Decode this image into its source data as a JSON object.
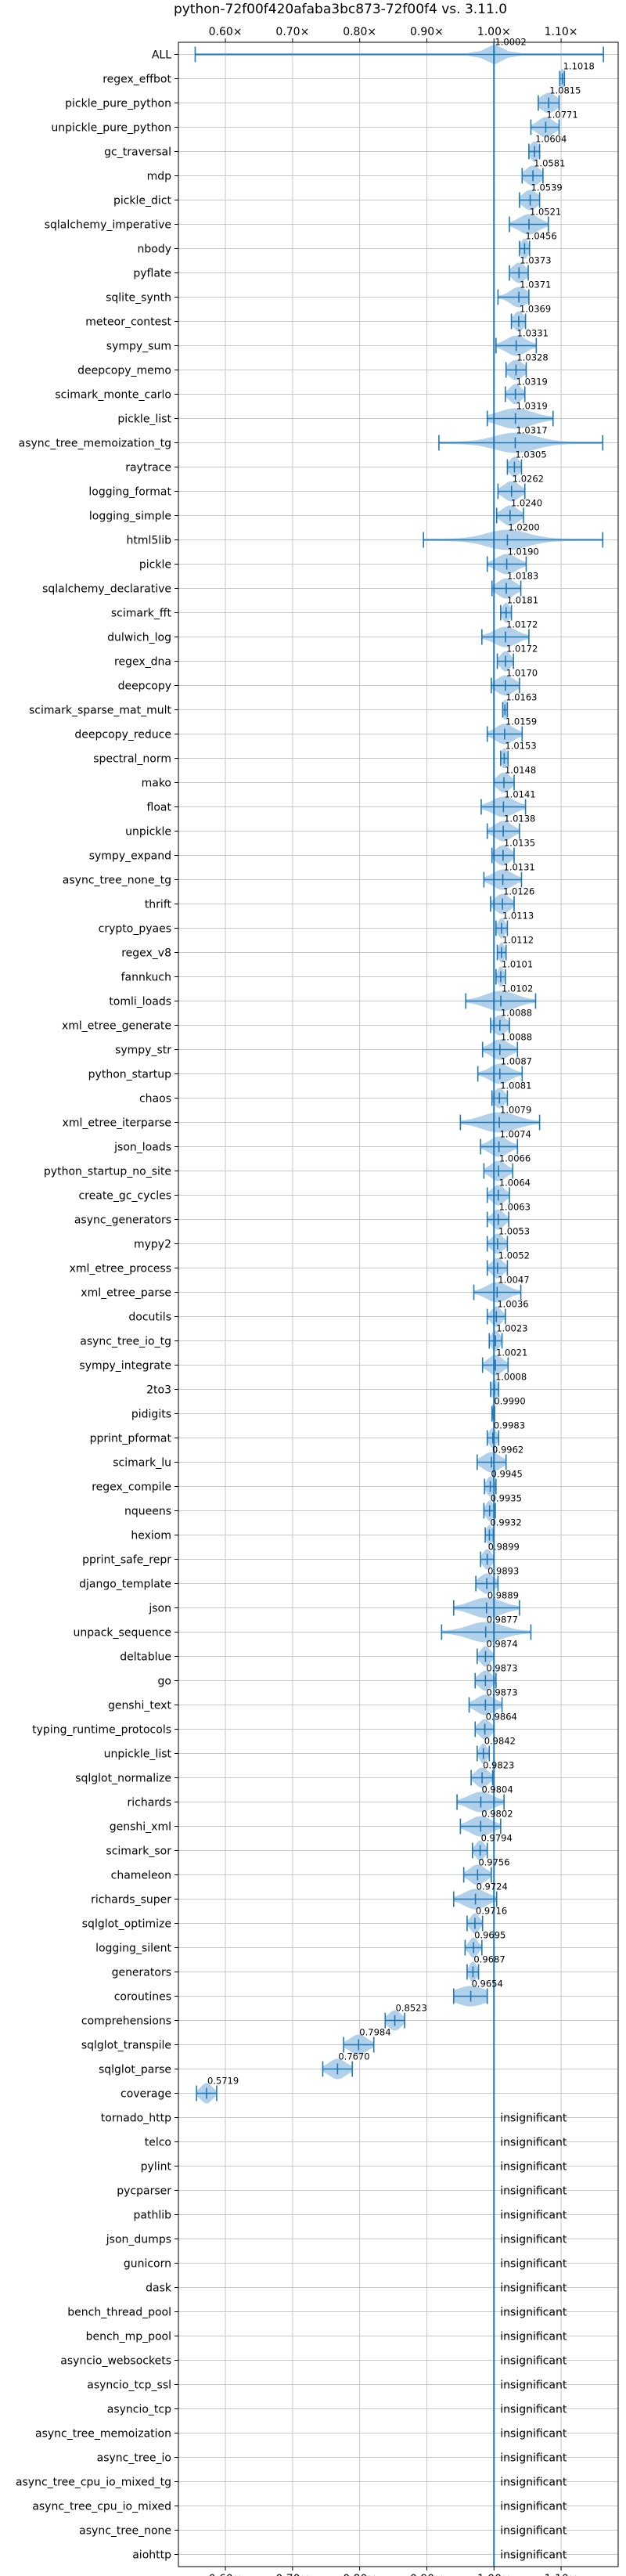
{
  "chart_data": {
    "type": "violin",
    "title": "python-72f00f420afaba3bc873-72f00f4 vs. 3.11.0",
    "xlim": [
      0.53,
      1.185
    ],
    "xticks": [
      0.6,
      0.7,
      0.8,
      0.9,
      1.0,
      1.1
    ],
    "xtick_labels": [
      "0.60×",
      "0.70×",
      "0.80×",
      "0.90×",
      "1.00×",
      "1.10×"
    ],
    "reference_line": 1.0,
    "grid": true,
    "colors": {
      "violin": "#a9cbe8",
      "whisker": "#1f77b4",
      "reference": "#1f77b4",
      "grid": "#c8c8c8"
    },
    "insignificant_label": "insignificant",
    "benchmarks": [
      {
        "name": "ALL",
        "value": 1.0002,
        "label": "1.0002",
        "lo": 0.555,
        "hi": 1.163,
        "spread": 0.012
      },
      {
        "name": "regex_effbot",
        "value": 1.1018,
        "label": "1.1018",
        "lo": 1.098,
        "hi": 1.105,
        "spread": 0.003
      },
      {
        "name": "pickle_pure_python",
        "value": 1.0815,
        "label": "1.0815",
        "lo": 1.066,
        "hi": 1.097,
        "spread": 0.011
      },
      {
        "name": "unpickle_pure_python",
        "value": 1.0771,
        "label": "1.0771",
        "lo": 1.055,
        "hi": 1.097,
        "spread": 0.011
      },
      {
        "name": "gc_traversal",
        "value": 1.0604,
        "label": "1.0604",
        "lo": 1.052,
        "hi": 1.068,
        "spread": 0.006
      },
      {
        "name": "mdp",
        "value": 1.0581,
        "label": "1.0581",
        "lo": 1.042,
        "hi": 1.073,
        "spread": 0.01
      },
      {
        "name": "pickle_dict",
        "value": 1.0539,
        "label": "1.0539",
        "lo": 1.038,
        "hi": 1.068,
        "spread": 0.01
      },
      {
        "name": "sqlalchemy_imperative",
        "value": 1.0521,
        "label": "1.0521",
        "lo": 1.023,
        "hi": 1.081,
        "spread": 0.014
      },
      {
        "name": "nbody",
        "value": 1.0456,
        "label": "1.0456",
        "lo": 1.038,
        "hi": 1.053,
        "spread": 0.005
      },
      {
        "name": "pyflate",
        "value": 1.0373,
        "label": "1.0373",
        "lo": 1.023,
        "hi": 1.051,
        "spread": 0.009
      },
      {
        "name": "sqlite_synth",
        "value": 1.0371,
        "label": "1.0371",
        "lo": 1.006,
        "hi": 1.052,
        "spread": 0.012
      },
      {
        "name": "meteor_contest",
        "value": 1.0369,
        "label": "1.0369",
        "lo": 1.026,
        "hi": 1.047,
        "spread": 0.007
      },
      {
        "name": "sympy_sum",
        "value": 1.0331,
        "label": "1.0331",
        "lo": 1.003,
        "hi": 1.063,
        "spread": 0.014
      },
      {
        "name": "deepcopy_memo",
        "value": 1.0328,
        "label": "1.0328",
        "lo": 1.018,
        "hi": 1.048,
        "spread": 0.01
      },
      {
        "name": "scimark_monte_carlo",
        "value": 1.0319,
        "label": "1.0319",
        "lo": 1.017,
        "hi": 1.046,
        "spread": 0.008
      },
      {
        "name": "pickle_list",
        "value": 1.0319,
        "label": "1.0319",
        "lo": 0.99,
        "hi": 1.088,
        "spread": 0.025
      },
      {
        "name": "async_tree_memoization_tg",
        "value": 1.0317,
        "label": "1.0317",
        "lo": 0.918,
        "hi": 1.162,
        "spread": 0.03
      },
      {
        "name": "raytrace",
        "value": 1.0305,
        "label": "1.0305",
        "lo": 1.02,
        "hi": 1.041,
        "spread": 0.007
      },
      {
        "name": "logging_format",
        "value": 1.0262,
        "label": "1.0262",
        "lo": 1.006,
        "hi": 1.046,
        "spread": 0.011
      },
      {
        "name": "logging_simple",
        "value": 1.024,
        "label": "1.0240",
        "lo": 1.004,
        "hi": 1.044,
        "spread": 0.011
      },
      {
        "name": "html5lib",
        "value": 1.02,
        "label": "1.0200",
        "lo": 0.895,
        "hi": 1.162,
        "spread": 0.03
      },
      {
        "name": "pickle",
        "value": 1.019,
        "label": "1.0190",
        "lo": 0.99,
        "hi": 1.048,
        "spread": 0.014
      },
      {
        "name": "sqlalchemy_declarative",
        "value": 1.0183,
        "label": "1.0183",
        "lo": 0.997,
        "hi": 1.04,
        "spread": 0.012
      },
      {
        "name": "scimark_fft",
        "value": 1.0181,
        "label": "1.0181",
        "lo": 1.01,
        "hi": 1.026,
        "spread": 0.005
      },
      {
        "name": "dulwich_log",
        "value": 1.0172,
        "label": "1.0172",
        "lo": 0.982,
        "hi": 1.052,
        "spread": 0.016
      },
      {
        "name": "regex_dna",
        "value": 1.0172,
        "label": "1.0172",
        "lo": 1.005,
        "hi": 1.029,
        "spread": 0.007
      },
      {
        "name": "deepcopy",
        "value": 1.017,
        "label": "1.0170",
        "lo": 0.996,
        "hi": 1.038,
        "spread": 0.012
      },
      {
        "name": "scimark_sparse_mat_mult",
        "value": 1.0163,
        "label": "1.0163",
        "lo": 1.013,
        "hi": 1.02,
        "spread": 0.003
      },
      {
        "name": "deepcopy_reduce",
        "value": 1.0159,
        "label": "1.0159",
        "lo": 0.99,
        "hi": 1.042,
        "spread": 0.013
      },
      {
        "name": "spectral_norm",
        "value": 1.0153,
        "label": "1.0153",
        "lo": 1.01,
        "hi": 1.021,
        "spread": 0.004
      },
      {
        "name": "mako",
        "value": 1.0148,
        "label": "1.0148",
        "lo": 1.0,
        "hi": 1.03,
        "spread": 0.009
      },
      {
        "name": "float",
        "value": 1.0141,
        "label": "1.0141",
        "lo": 0.981,
        "hi": 1.047,
        "spread": 0.016
      },
      {
        "name": "unpickle",
        "value": 1.0138,
        "label": "1.0138",
        "lo": 0.99,
        "hi": 1.038,
        "spread": 0.012
      },
      {
        "name": "sympy_expand",
        "value": 1.0135,
        "label": "1.0135",
        "lo": 0.997,
        "hi": 1.03,
        "spread": 0.01
      },
      {
        "name": "async_tree_none_tg",
        "value": 1.0131,
        "label": "1.0131",
        "lo": 0.985,
        "hi": 1.041,
        "spread": 0.014
      },
      {
        "name": "thrift",
        "value": 1.0126,
        "label": "1.0126",
        "lo": 0.995,
        "hi": 1.03,
        "spread": 0.01
      },
      {
        "name": "crypto_pyaes",
        "value": 1.0113,
        "label": "1.0113",
        "lo": 1.003,
        "hi": 1.02,
        "spread": 0.005
      },
      {
        "name": "regex_v8",
        "value": 1.0112,
        "label": "1.0112",
        "lo": 1.005,
        "hi": 1.018,
        "spread": 0.004
      },
      {
        "name": "fannkuch",
        "value": 1.0101,
        "label": "1.0101",
        "lo": 1.003,
        "hi": 1.017,
        "spread": 0.004
      },
      {
        "name": "tomli_loads",
        "value": 1.0102,
        "label": "1.0102",
        "lo": 0.958,
        "hi": 1.062,
        "spread": 0.022
      },
      {
        "name": "xml_etree_generate",
        "value": 1.0088,
        "label": "1.0088",
        "lo": 0.995,
        "hi": 1.023,
        "spread": 0.009
      },
      {
        "name": "sympy_str",
        "value": 1.0088,
        "label": "1.0088",
        "lo": 0.983,
        "hi": 1.035,
        "spread": 0.013
      },
      {
        "name": "python_startup",
        "value": 1.0087,
        "label": "1.0087",
        "lo": 0.976,
        "hi": 1.042,
        "spread": 0.014
      },
      {
        "name": "chaos",
        "value": 1.0081,
        "label": "1.0081",
        "lo": 0.997,
        "hi": 1.02,
        "spread": 0.007
      },
      {
        "name": "xml_etree_iterparse",
        "value": 1.0079,
        "label": "1.0079",
        "lo": 0.95,
        "hi": 1.068,
        "spread": 0.025
      },
      {
        "name": "json_loads",
        "value": 1.0074,
        "label": "1.0074",
        "lo": 0.98,
        "hi": 1.035,
        "spread": 0.013
      },
      {
        "name": "python_startup_no_site",
        "value": 1.0066,
        "label": "1.0066",
        "lo": 0.985,
        "hi": 1.028,
        "spread": 0.011
      },
      {
        "name": "create_gc_cycles",
        "value": 1.0064,
        "label": "1.0064",
        "lo": 0.99,
        "hi": 1.023,
        "spread": 0.009
      },
      {
        "name": "async_generators",
        "value": 1.0063,
        "label": "1.0063",
        "lo": 0.99,
        "hi": 1.022,
        "spread": 0.008
      },
      {
        "name": "mypy2",
        "value": 1.0053,
        "label": "1.0053",
        "lo": 0.99,
        "hi": 1.02,
        "spread": 0.008
      },
      {
        "name": "xml_etree_process",
        "value": 1.0052,
        "label": "1.0052",
        "lo": 0.99,
        "hi": 1.02,
        "spread": 0.008
      },
      {
        "name": "xml_etree_parse",
        "value": 1.0047,
        "label": "1.0047",
        "lo": 0.97,
        "hi": 1.04,
        "spread": 0.015
      },
      {
        "name": "docutils",
        "value": 1.0036,
        "label": "1.0036",
        "lo": 0.99,
        "hi": 1.017,
        "spread": 0.007
      },
      {
        "name": "async_tree_io_tg",
        "value": 1.0023,
        "label": "1.0023",
        "lo": 0.993,
        "hi": 1.012,
        "spread": 0.006
      },
      {
        "name": "sympy_integrate",
        "value": 1.0021,
        "label": "1.0021",
        "lo": 0.983,
        "hi": 1.021,
        "spread": 0.01
      },
      {
        "name": "2to3",
        "value": 1.0008,
        "label": "1.0008",
        "lo": 0.995,
        "hi": 1.007,
        "spread": 0.004
      },
      {
        "name": "pidigits",
        "value": 0.999,
        "label": "0.9990",
        "lo": 0.997,
        "hi": 1.001,
        "spread": 0.002
      },
      {
        "name": "pprint_pformat",
        "value": 0.9983,
        "label": "0.9983",
        "lo": 0.99,
        "hi": 1.007,
        "spread": 0.005
      },
      {
        "name": "scimark_lu",
        "value": 0.9962,
        "label": "0.9962",
        "lo": 0.975,
        "hi": 1.018,
        "spread": 0.012
      },
      {
        "name": "regex_compile",
        "value": 0.9945,
        "label": "0.9945",
        "lo": 0.986,
        "hi": 1.003,
        "spread": 0.005
      },
      {
        "name": "nqueens",
        "value": 0.9935,
        "label": "0.9935",
        "lo": 0.985,
        "hi": 1.002,
        "spread": 0.005
      },
      {
        "name": "hexiom",
        "value": 0.9932,
        "label": "0.9932",
        "lo": 0.987,
        "hi": 0.999,
        "spread": 0.004
      },
      {
        "name": "pprint_safe_repr",
        "value": 0.9899,
        "label": "0.9899",
        "lo": 0.98,
        "hi": 1.0,
        "spread": 0.006
      },
      {
        "name": "django_template",
        "value": 0.9893,
        "label": "0.9893",
        "lo": 0.973,
        "hi": 1.006,
        "spread": 0.01
      },
      {
        "name": "json",
        "value": 0.9889,
        "label": "0.9889",
        "lo": 0.94,
        "hi": 1.038,
        "spread": 0.022
      },
      {
        "name": "unpack_sequence",
        "value": 0.9877,
        "label": "0.9877",
        "lo": 0.922,
        "hi": 1.055,
        "spread": 0.025
      },
      {
        "name": "deltablue",
        "value": 0.9874,
        "label": "0.9874",
        "lo": 0.975,
        "hi": 1.0,
        "spread": 0.007
      },
      {
        "name": "go",
        "value": 0.9873,
        "label": "0.9873",
        "lo": 0.972,
        "hi": 1.003,
        "spread": 0.009
      },
      {
        "name": "genshi_text",
        "value": 0.9873,
        "label": "0.9873",
        "lo": 0.963,
        "hi": 1.012,
        "spread": 0.013
      },
      {
        "name": "typing_runtime_protocols",
        "value": 0.9864,
        "label": "0.9864",
        "lo": 0.972,
        "hi": 1.0,
        "spread": 0.008
      },
      {
        "name": "unpickle_list",
        "value": 0.9842,
        "label": "0.9842",
        "lo": 0.975,
        "hi": 0.993,
        "spread": 0.005
      },
      {
        "name": "sqlglot_normalize",
        "value": 0.9823,
        "label": "0.9823",
        "lo": 0.966,
        "hi": 0.998,
        "spread": 0.009
      },
      {
        "name": "richards",
        "value": 0.9804,
        "label": "0.9804",
        "lo": 0.945,
        "hi": 1.015,
        "spread": 0.017
      },
      {
        "name": "genshi_xml",
        "value": 0.9802,
        "label": "0.9802",
        "lo": 0.95,
        "hi": 1.01,
        "spread": 0.015
      },
      {
        "name": "scimark_sor",
        "value": 0.9794,
        "label": "0.9794",
        "lo": 0.968,
        "hi": 0.99,
        "spread": 0.006
      },
      {
        "name": "chameleon",
        "value": 0.9756,
        "label": "0.9756",
        "lo": 0.955,
        "hi": 0.996,
        "spread": 0.011
      },
      {
        "name": "richards_super",
        "value": 0.9724,
        "label": "0.9724",
        "lo": 0.94,
        "hi": 1.004,
        "spread": 0.016
      },
      {
        "name": "sqlglot_optimize",
        "value": 0.9716,
        "label": "0.9716",
        "lo": 0.96,
        "hi": 0.983,
        "spread": 0.006
      },
      {
        "name": "logging_silent",
        "value": 0.9695,
        "label": "0.9695",
        "lo": 0.957,
        "hi": 0.982,
        "spread": 0.006
      },
      {
        "name": "generators",
        "value": 0.9687,
        "label": "0.9687",
        "lo": 0.96,
        "hi": 0.977,
        "spread": 0.005
      },
      {
        "name": "coroutines",
        "value": 0.9654,
        "label": "0.9654",
        "lo": 0.94,
        "hi": 0.99,
        "spread": 0.022
      },
      {
        "name": "comprehensions",
        "value": 0.8523,
        "label": "0.8523",
        "lo": 0.838,
        "hi": 0.867,
        "spread": 0.009
      },
      {
        "name": "sqlglot_transpile",
        "value": 0.7984,
        "label": "0.7984",
        "lo": 0.776,
        "hi": 0.821,
        "spread": 0.012
      },
      {
        "name": "sqlglot_parse",
        "value": 0.767,
        "label": "0.7670",
        "lo": 0.745,
        "hi": 0.789,
        "spread": 0.012
      },
      {
        "name": "coverage",
        "value": 0.5719,
        "label": "0.5719",
        "lo": 0.557,
        "hi": 0.587,
        "spread": 0.008
      },
      {
        "name": "tornado_http",
        "insignificant": true
      },
      {
        "name": "telco",
        "insignificant": true
      },
      {
        "name": "pylint",
        "insignificant": true
      },
      {
        "name": "pycparser",
        "insignificant": true
      },
      {
        "name": "pathlib",
        "insignificant": true
      },
      {
        "name": "json_dumps",
        "insignificant": true
      },
      {
        "name": "gunicorn",
        "insignificant": true
      },
      {
        "name": "dask",
        "insignificant": true
      },
      {
        "name": "bench_thread_pool",
        "insignificant": true
      },
      {
        "name": "bench_mp_pool",
        "insignificant": true
      },
      {
        "name": "asyncio_websockets",
        "insignificant": true
      },
      {
        "name": "asyncio_tcp_ssl",
        "insignificant": true
      },
      {
        "name": "asyncio_tcp",
        "insignificant": true
      },
      {
        "name": "async_tree_memoization",
        "insignificant": true
      },
      {
        "name": "async_tree_io",
        "insignificant": true
      },
      {
        "name": "async_tree_cpu_io_mixed_tg",
        "insignificant": true
      },
      {
        "name": "async_tree_cpu_io_mixed",
        "insignificant": true
      },
      {
        "name": "async_tree_none",
        "insignificant": true
      },
      {
        "name": "aiohttp",
        "insignificant": true
      }
    ]
  }
}
